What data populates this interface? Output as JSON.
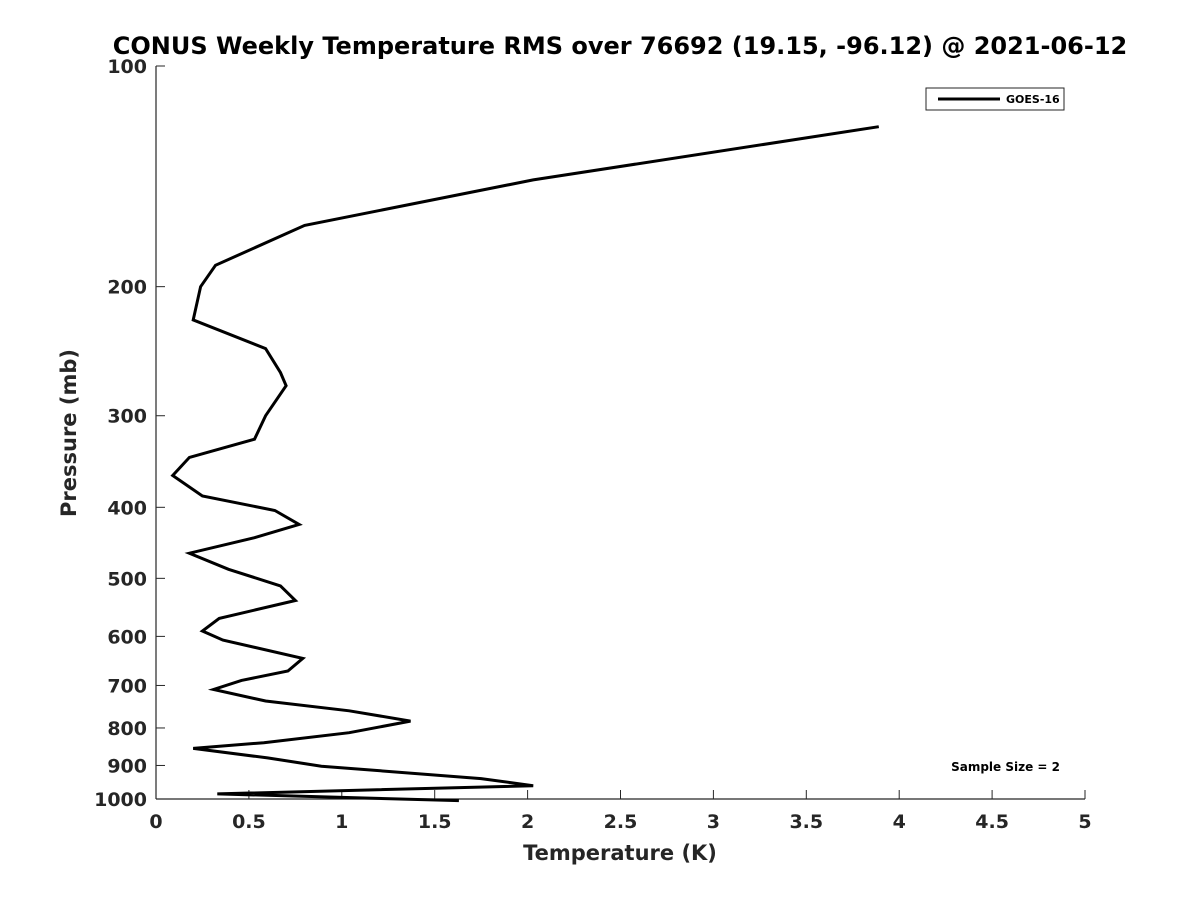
{
  "chart_data": {
    "type": "line",
    "title": "CONUS Weekly Temperature RMS over 76692 (19.15, -96.12) @ 2021-06-12",
    "xlabel": "Temperature (K)",
    "ylabel": "Pressure (mb)",
    "xlim": [
      0,
      5
    ],
    "ylim": [
      100,
      1000
    ],
    "y_scale": "log",
    "y_reversed": true,
    "x_ticks": [
      "0",
      "0.5",
      "1",
      "1.5",
      "2",
      "2.5",
      "3",
      "3.5",
      "4",
      "4.5",
      "5"
    ],
    "y_ticks": [
      "100",
      "200",
      "300",
      "400",
      "500",
      "600",
      "700",
      "800",
      "900",
      "1000"
    ],
    "grid": false,
    "legend_position": "top-right",
    "annotation": "Sample Size = 2",
    "series": [
      {
        "name": "GOES-16",
        "color": "#000000",
        "x": [
          3.89,
          2.03,
          0.8,
          0.32,
          0.24,
          0.2,
          0.59,
          0.67,
          0.7,
          0.59,
          0.53,
          0.18,
          0.09,
          0.25,
          0.64,
          0.77,
          0.53,
          0.18,
          0.39,
          0.67,
          0.75,
          0.34,
          0.25,
          0.36,
          0.79,
          0.71,
          0.46,
          0.31,
          0.59,
          1.04,
          1.37,
          1.04,
          0.58,
          0.2,
          0.6,
          0.89,
          1.75,
          2.03,
          0.33,
          1.63
        ],
        "y": [
          121,
          143,
          165,
          187,
          200,
          222,
          243,
          262,
          273,
          300,
          323,
          342,
          362,
          386,
          404,
          422,
          440,
          462,
          486,
          512,
          536,
          567,
          590,
          607,
          643,
          669,
          689,
          709,
          735,
          758,
          783,
          812,
          838,
          853,
          879,
          902,
          938,
          959,
          984,
          1005
        ]
      }
    ]
  }
}
